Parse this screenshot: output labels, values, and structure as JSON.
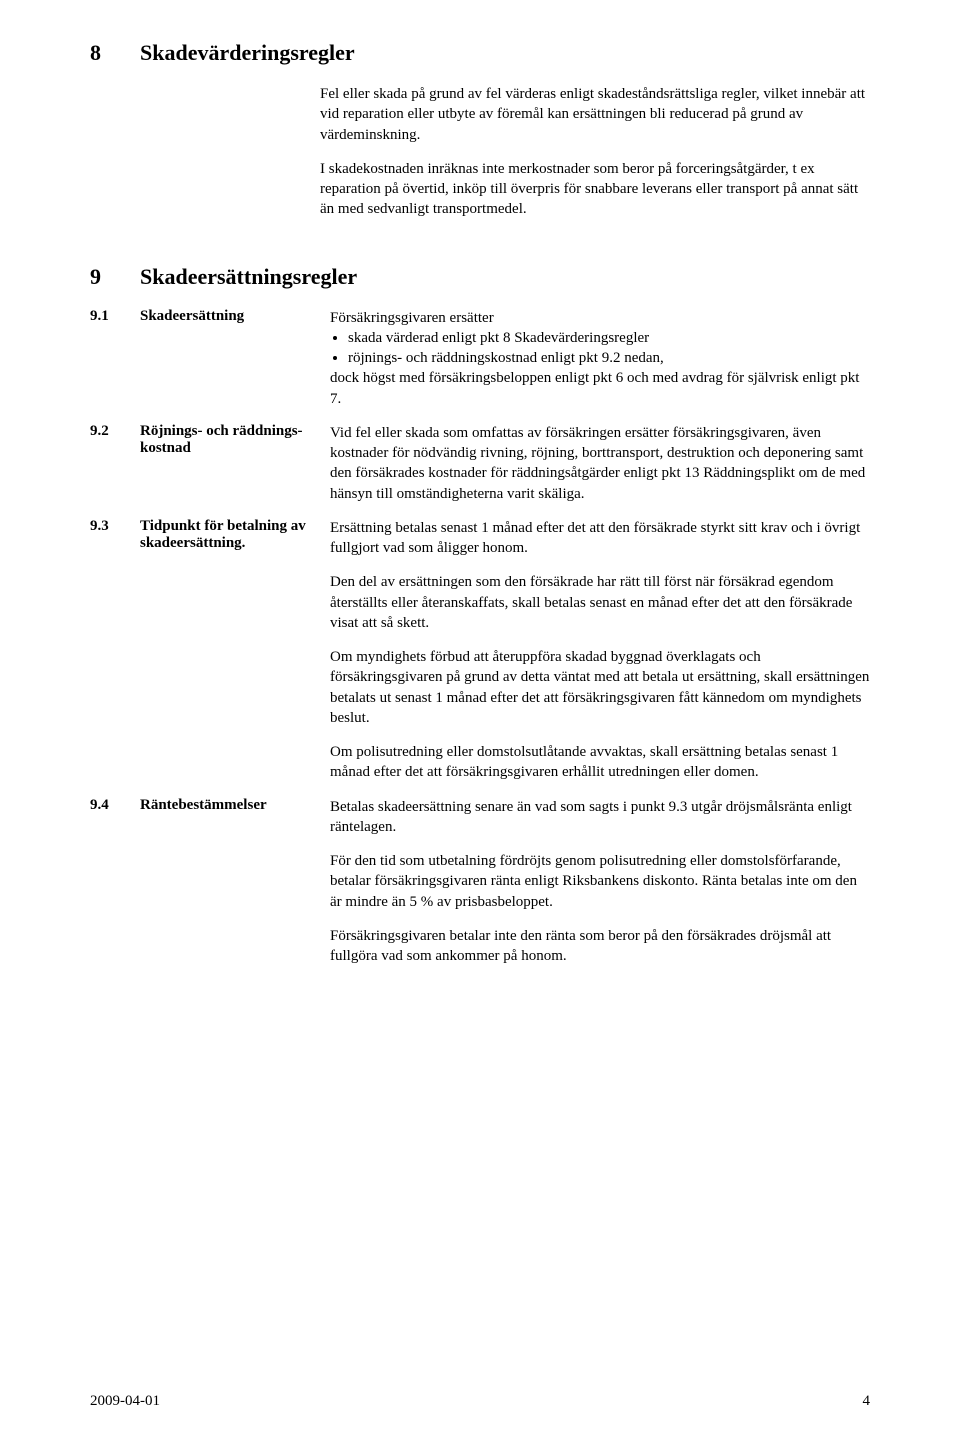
{
  "s8": {
    "num": "8",
    "title": "Skadevärderingsregler",
    "p1": "Fel eller skada på grund av fel värderas enligt skadeståndsrättsliga regler, vilket innebär att vid reparation eller utbyte av föremål kan ersättningen bli reducerad på grund av värdeminskning.",
    "p2": "I skadekostnaden inräknas inte merkostnader som beror på forceringsåtgärder, t ex reparation på övertid, inköp till överpris för snabbare leverans eller transport på annat sätt än med sedvanligt transportmedel."
  },
  "s9": {
    "num": "9",
    "title": "Skadeersättningsregler",
    "i1": {
      "num": "9.1",
      "label": "Skadeersättning",
      "lead": "Försäkringsgivaren ersätter",
      "b1": "skada värderad enligt pkt 8 Skadevärderingsregler",
      "b2": "röjnings- och räddningskostnad enligt pkt 9.2 nedan,",
      "tail": "dock högst med försäkringsbeloppen enligt pkt 6 och med avdrag för självrisk enligt pkt 7."
    },
    "i2": {
      "num": "9.2",
      "label": "Röjnings- och räddnings-kostnad",
      "p1": "Vid fel eller skada som omfattas av försäkringen ersätter försäkringsgivaren, även kostnader för nödvändig rivning, röjning, borttransport, destruktion och deponering samt den försäkrades kostnader för räddningsåtgärder enligt pkt 13 Räddningsplikt om de med hänsyn till omständigheterna varit skäliga."
    },
    "i3": {
      "num": "9.3",
      "label": "Tidpunkt för betalning av skadeersättning.",
      "p1": "Ersättning betalas senast 1 månad efter det att den försäkrade styrkt sitt krav och i övrigt fullgjort vad som åligger honom.",
      "p2": "Den del av ersättningen som den försäkrade har rätt till först när försäkrad egendom återställts eller återanskaffats, skall betalas senast en månad efter det att den försäkrade visat att så skett.",
      "p3": "Om myndighets förbud att återuppföra skadad byggnad överklagats och försäkringsgivaren på grund av detta väntat med att betala ut ersättning, skall ersättningen betalats ut senast 1 månad efter det att försäkringsgivaren fått kännedom om myndighets beslut.",
      "p4": "Om polisutredning eller domstolsutlåtande avvaktas, skall ersättning betalas senast 1 månad efter det att försäkringsgivaren erhållit utredningen eller domen."
    },
    "i4": {
      "num": "9.4",
      "label": "Räntebestämmelser",
      "p1": "Betalas skadeersättning senare än vad som sagts i punkt 9.3 utgår dröjsmålsränta enligt räntelagen.",
      "p2": "För den tid som utbetalning fördröjts genom polisutredning eller domstolsförfarande, betalar försäkringsgivaren ränta enligt Riksbankens diskonto. Ränta betalas inte om den är mindre än 5 % av prisbasbeloppet.",
      "p3": "Försäkringsgivaren betalar inte den ränta som beror på den försäkrades dröjsmål att fullgöra vad som ankommer på honom."
    }
  },
  "footer": {
    "date": "2009-04-01",
    "page": "4"
  }
}
